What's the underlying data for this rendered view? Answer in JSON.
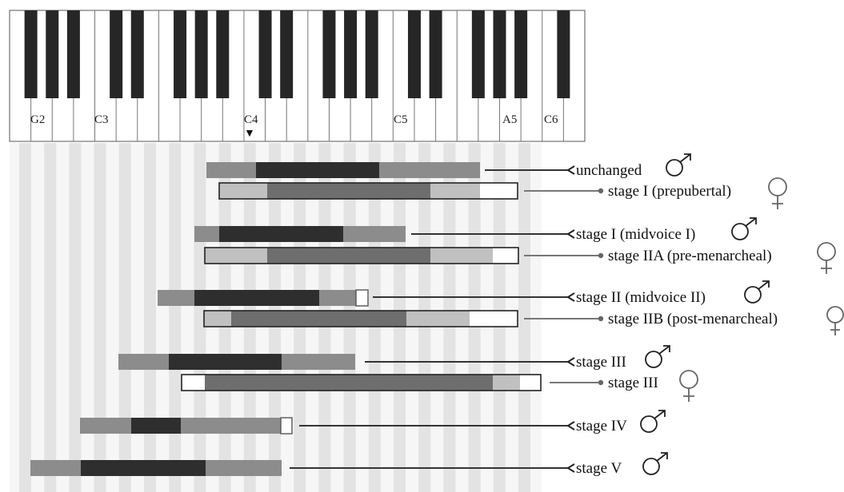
{
  "keyboard": {
    "note_labels": [
      "G2",
      "C3",
      "C4",
      "C5",
      "A5",
      "C6"
    ],
    "middle_c_marker": "▼"
  },
  "symbols": {
    "male": "♂",
    "female": "♀"
  },
  "colors": {
    "outer_range_male": "#8c8c8c",
    "core_range_male": "#2e2e2e",
    "outer_range_female": "#c0c0c0",
    "core_range_female": "#6e6e6e",
    "extension": "#ffffff",
    "stripe": "#e3e3e3",
    "line": "#333333",
    "symbol": "#555555"
  },
  "stages": [
    {
      "label": "unchanged",
      "sex": "male"
    },
    {
      "label": "stage I (prepubertal)",
      "sex": "female"
    },
    {
      "label": "stage I (midvoice I)",
      "sex": "male"
    },
    {
      "label": "stage IIA (pre-menarcheal)",
      "sex": "female"
    },
    {
      "label": "stage II (midvoice II)",
      "sex": "male"
    },
    {
      "label": "stage IIB (post-menarcheal)",
      "sex": "female"
    },
    {
      "label": "stage III",
      "sex": "male"
    },
    {
      "label": "stage III",
      "sex": "female"
    },
    {
      "label": "stage IV",
      "sex": "male"
    },
    {
      "label": "stage V",
      "sex": "male"
    }
  ]
}
